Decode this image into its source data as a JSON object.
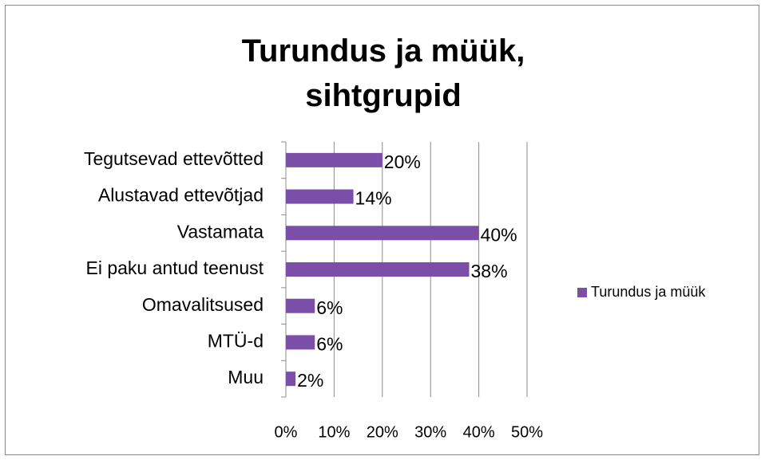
{
  "chart_data": {
    "type": "bar",
    "orientation": "horizontal",
    "title": "Turundus ja müük, sihtgrupid",
    "categories": [
      "Tegutsevad ettevõtted",
      "Alustavad ettevõtjad",
      "Vastamata",
      "Ei paku antud teenust",
      "Omavalitsused",
      "MTÜ-d",
      "Muu"
    ],
    "series": [
      {
        "name": "Turundus ja müük",
        "color": "#7b4fa8",
        "values": [
          20,
          14,
          40,
          38,
          6,
          6,
          2
        ],
        "value_labels": [
          "20%",
          "14%",
          "40%",
          "38%",
          "6%",
          "6%",
          "2%"
        ]
      }
    ],
    "xlim": [
      0,
      50
    ],
    "xticks": [
      {
        "value": 0,
        "label": "0%"
      },
      {
        "value": 10,
        "label": "10%"
      },
      {
        "value": 20,
        "label": "20%"
      },
      {
        "value": 30,
        "label": "30%"
      },
      {
        "value": 40,
        "label": "40%"
      },
      {
        "value": 50,
        "label": "50%"
      }
    ],
    "grid": true,
    "legend": "right"
  }
}
